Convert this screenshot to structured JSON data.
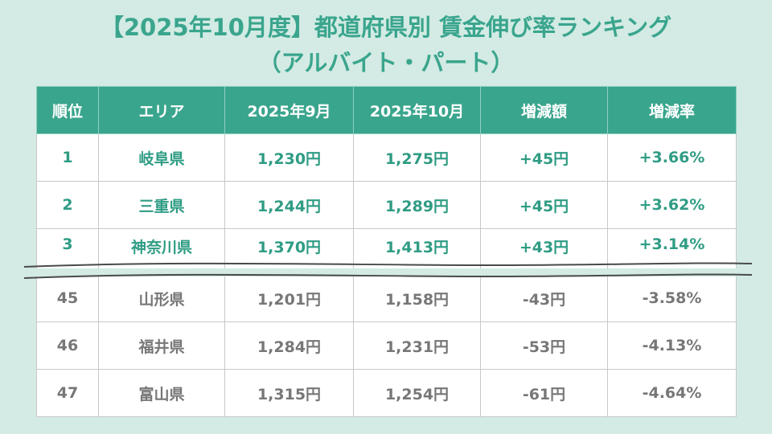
{
  "title": {
    "line1": "【2025年10月度】都道府県別 賃金伸び率ランキング",
    "line2": "（アルバイト・パート）"
  },
  "table": {
    "headers": [
      "順位",
      "エリア",
      "2025年9月",
      "2025年10月",
      "増減額",
      "増減率"
    ],
    "top_rows": [
      {
        "rank": "1",
        "area": "岐阜県",
        "sep": "1,230円",
        "oct": "1,275円",
        "diff": "+45円",
        "rate": "+3.66%"
      },
      {
        "rank": "2",
        "area": "三重県",
        "sep": "1,244円",
        "oct": "1,289円",
        "diff": "+45円",
        "rate": "+3.62%"
      },
      {
        "rank": "3",
        "area": "神奈川県",
        "sep": "1,370円",
        "oct": "1,413円",
        "diff": "+43円",
        "rate": "+3.14%"
      }
    ],
    "bottom_rows": [
      {
        "rank": "45",
        "area": "山形県",
        "sep": "1,201円",
        "oct": "1,158円",
        "diff": "-43円",
        "rate": "-3.58%"
      },
      {
        "rank": "46",
        "area": "福井県",
        "sep": "1,284円",
        "oct": "1,231円",
        "diff": "-53円",
        "rate": "-4.13%"
      },
      {
        "rank": "47",
        "area": "富山県",
        "sep": "1,315円",
        "oct": "1,254円",
        "diff": "-61円",
        "rate": "-4.64%"
      }
    ]
  },
  "colors": {
    "accent": "#3aa58d",
    "background": "#d3ebe4",
    "bottom_text": "#777777"
  }
}
